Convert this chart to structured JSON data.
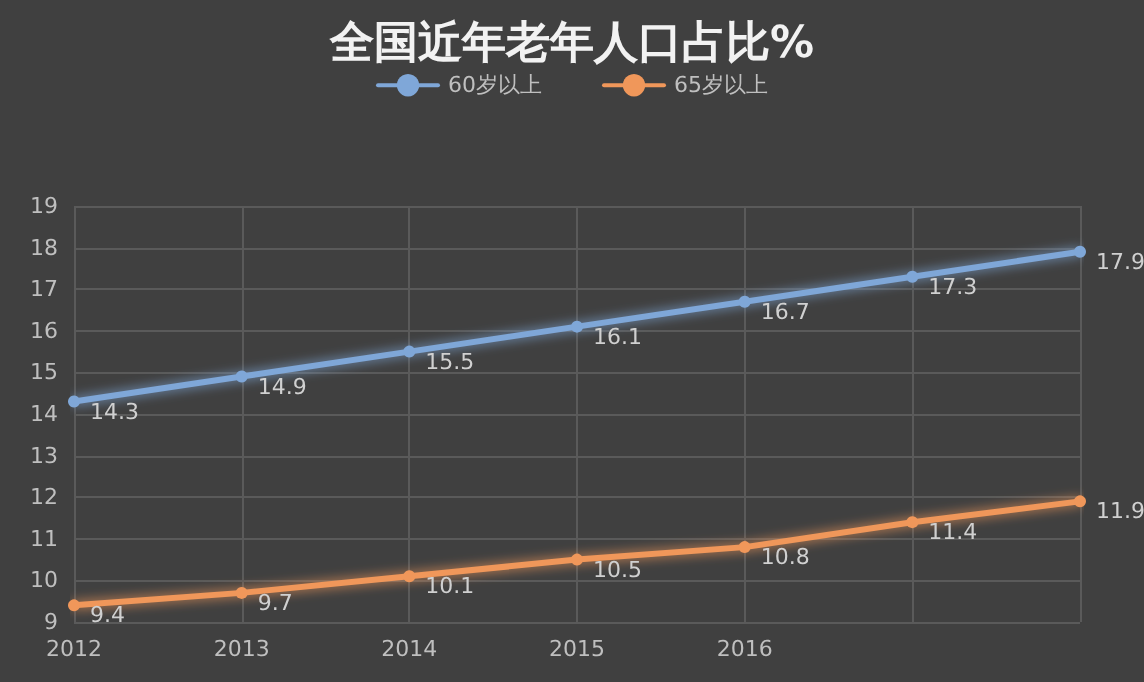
{
  "chart_data": {
    "type": "line",
    "title": "全国近年老年人口占比%",
    "categories": [
      "2012",
      "2013",
      "2014",
      "2015",
      "2016",
      null,
      null
    ],
    "series": [
      {
        "name": "60岁以上",
        "color": "#7fa7d8",
        "values": [
          14.3,
          14.9,
          15.5,
          16.1,
          16.7,
          17.3,
          17.9
        ]
      },
      {
        "name": "65岁以上",
        "color": "#f0975a",
        "values": [
          9.4,
          9.7,
          10.1,
          10.5,
          10.8,
          11.4,
          11.9
        ]
      }
    ],
    "ylim": [
      9,
      19
    ],
    "yticks": [
      9,
      10,
      11,
      12,
      13,
      14,
      15,
      16,
      17,
      18,
      19
    ],
    "grid": true,
    "legend": "top",
    "marker": "circle",
    "line_style": "solid",
    "data_labels": true
  }
}
